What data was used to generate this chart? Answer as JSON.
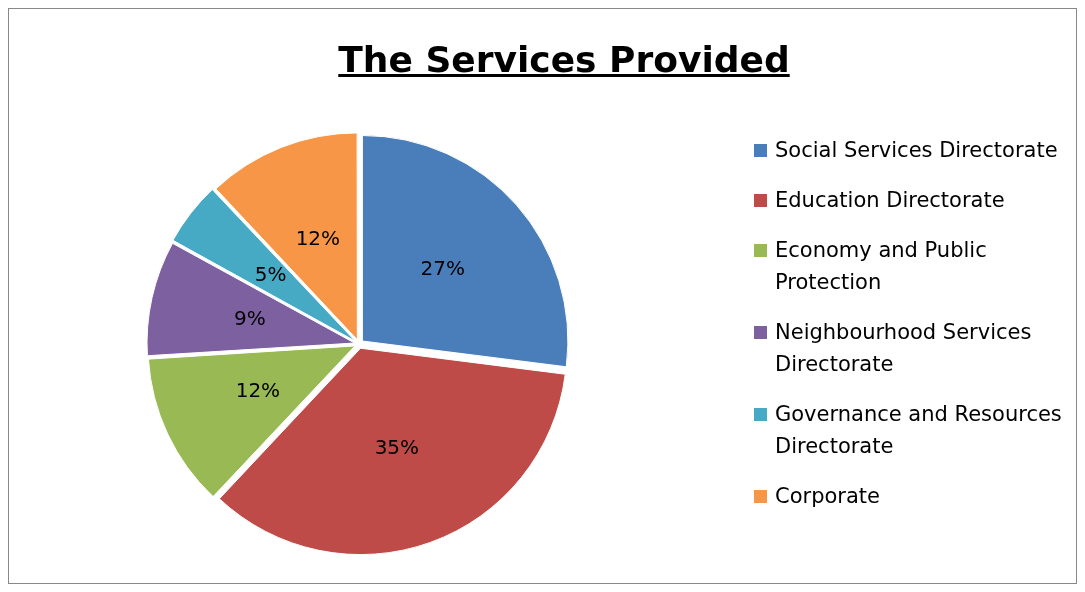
{
  "chart_data": {
    "type": "pie",
    "title": "The Services Provided",
    "categories": [
      "Social Services Directorate",
      "Education Directorate",
      "Economy and Public Protection",
      "Neighbourhood Services Directorate",
      "Governance and Resources Directorate",
      "Corporate"
    ],
    "values": [
      27,
      35,
      12,
      9,
      5,
      12
    ],
    "value_labels": [
      "27%",
      "35%",
      "12%",
      "9%",
      "5%",
      "12%"
    ],
    "colors": [
      "#4a7ebb",
      "#be4b48",
      "#98b954",
      "#7d60a0",
      "#46aac5",
      "#f79646"
    ],
    "legend": "right"
  }
}
